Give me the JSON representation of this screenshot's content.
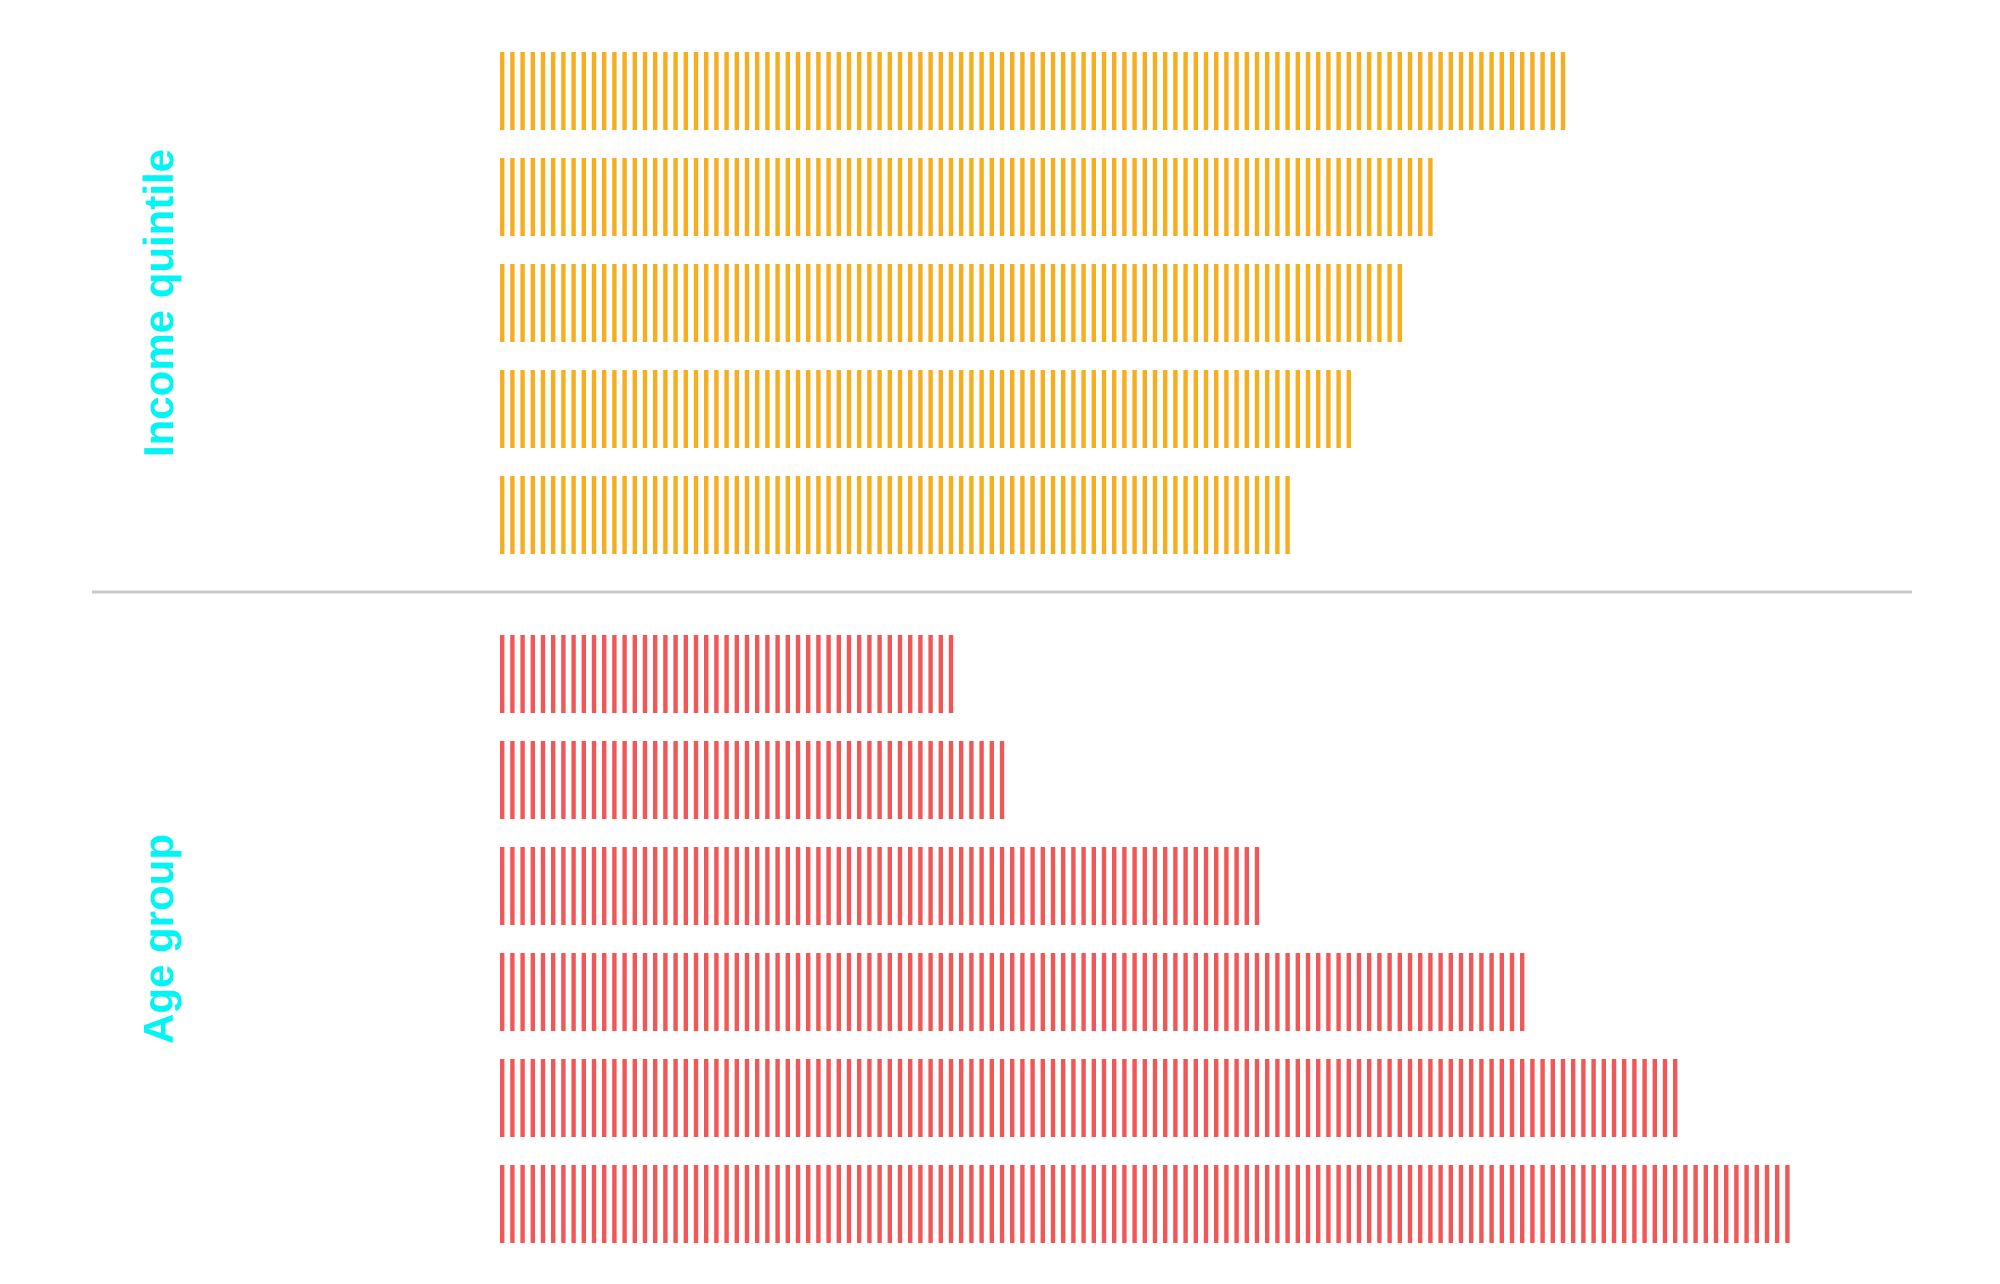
{
  "chart_data": {
    "type": "bar",
    "orientation": "horizontal",
    "bar_style": "vertical-hatch",
    "grid": false,
    "legend": "none",
    "groups": [
      {
        "label": "Income quintile",
        "label_color": "#00f5f5",
        "color": "#f5ae1f",
        "values": [
          76.2,
          67.0,
          65.0,
          60.9,
          56.8
        ]
      },
      {
        "label": "Age group",
        "label_color": "#00f5f5",
        "color": "#f25757",
        "values": [
          32.4,
          36.5,
          54.7,
          73.2,
          84.3,
          92.3
        ]
      }
    ],
    "xlim": [
      0,
      100
    ],
    "separator_color": "#c8c8c8"
  }
}
